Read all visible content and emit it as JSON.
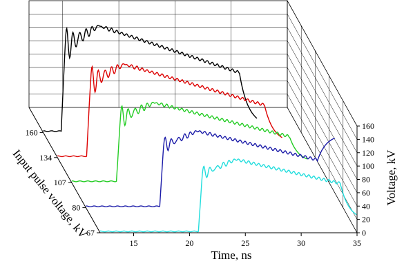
{
  "chart_data": {
    "type": "line",
    "title": "",
    "xlabel": "Time, ns",
    "ylabel": "Voltage, kV",
    "zlabel": "Input pulse voltage, kV",
    "xlim": [
      12,
      35
    ],
    "ylim": [
      0,
      160
    ],
    "x_ticks": [
      "15",
      "20",
      "25",
      "30",
      "35"
    ],
    "y_ticks": [
      "0",
      "20",
      "40",
      "60",
      "80",
      "100",
      "120",
      "140",
      "160"
    ],
    "z_ticks": [
      "67",
      "80",
      "107",
      "134",
      "160"
    ],
    "grid": true,
    "series": [
      {
        "name": "160",
        "color": "#000000",
        "rise_ns": 13.6,
        "peak_kV": 160,
        "osc_kV": 28,
        "drop_ns": 29.5,
        "end_kV": 10
      },
      {
        "name": "134",
        "color": "#dd0000",
        "rise_ns": 14.6,
        "peak_kV": 140,
        "osc_kV": 24,
        "drop_ns": 30.5,
        "end_kV": 22
      },
      {
        "name": "107",
        "color": "#22cc22",
        "rise_ns": 16.0,
        "peak_kV": 120,
        "osc_kV": 18,
        "drop_ns": 31.5,
        "end_kV": 30
      },
      {
        "name": "80",
        "color": "#1a1aa8",
        "rise_ns": 18.6,
        "peak_kV": 115,
        "osc_kV": 12,
        "drop_ns": 32.7,
        "end_kV": 110
      },
      {
        "name": "67",
        "color": "#22dddd",
        "rise_ns": 20.8,
        "peak_kV": 110,
        "osc_kV": 10,
        "drop_ns": 33.5,
        "end_kV": 18
      }
    ]
  }
}
